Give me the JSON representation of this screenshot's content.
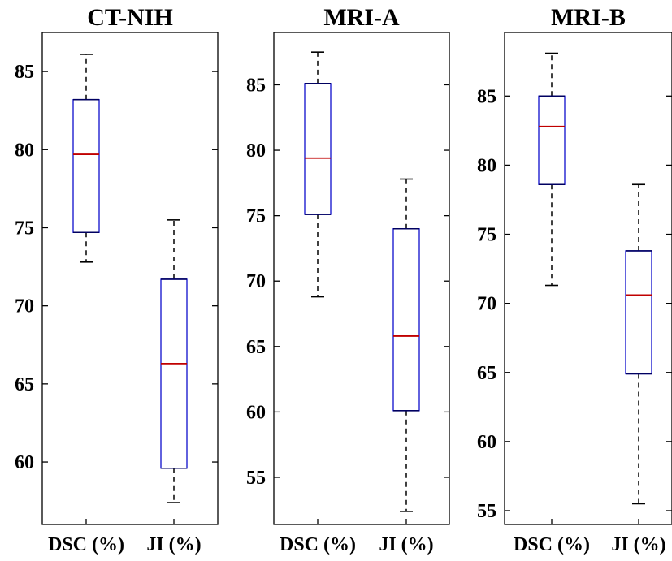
{
  "colors": {
    "box": "#1f1fd0",
    "median": "#c00000",
    "whisker": "#000000"
  },
  "chart_data": [
    {
      "type": "box",
      "title": "CT-NIH",
      "categories": [
        "DSC (%)",
        "JI (%)"
      ],
      "ylim": [
        56.0,
        87.5
      ],
      "yticks": [
        60,
        65,
        70,
        75,
        80,
        85
      ],
      "series": [
        {
          "category": "DSC (%)",
          "min": 72.8,
          "q1": 74.7,
          "median": 79.7,
          "q3": 83.2,
          "max": 86.1
        },
        {
          "category": "JI (%)",
          "min": 57.4,
          "q1": 59.6,
          "median": 66.3,
          "q3": 71.7,
          "max": 75.5
        }
      ]
    },
    {
      "type": "box",
      "title": "MRI-A",
      "categories": [
        "DSC (%)",
        "JI (%)"
      ],
      "ylim": [
        51.4,
        89.0
      ],
      "yticks": [
        55,
        60,
        65,
        70,
        75,
        80,
        85
      ],
      "series": [
        {
          "category": "DSC (%)",
          "min": 68.8,
          "q1": 75.1,
          "median": 79.4,
          "q3": 85.1,
          "max": 87.5
        },
        {
          "category": "JI (%)",
          "min": 52.4,
          "q1": 60.1,
          "median": 65.8,
          "q3": 74.0,
          "max": 77.8
        }
      ]
    },
    {
      "type": "box",
      "title": "MRI-B",
      "categories": [
        "DSC (%)",
        "JI (%)"
      ],
      "ylim": [
        54.0,
        89.6
      ],
      "yticks": [
        55,
        60,
        65,
        70,
        75,
        80,
        85
      ],
      "series": [
        {
          "category": "DSC (%)",
          "min": 71.3,
          "q1": 78.6,
          "median": 82.8,
          "q3": 85.0,
          "max": 88.1
        },
        {
          "category": "JI (%)",
          "min": 55.5,
          "q1": 64.9,
          "median": 70.6,
          "q3": 73.8,
          "max": 78.6
        }
      ]
    }
  ]
}
